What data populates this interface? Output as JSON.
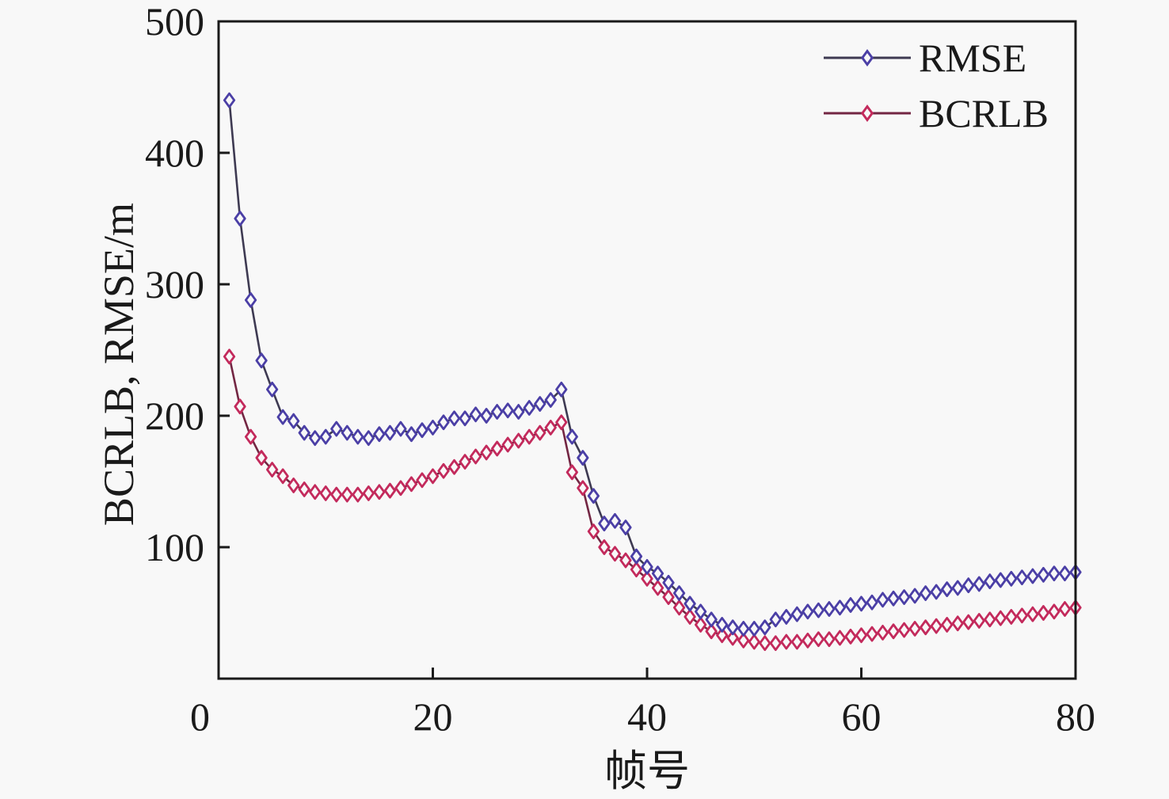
{
  "figure": {
    "background": "#f8f8f8",
    "axis_color": "#1a1a1a",
    "text_color": "#1a1a1a"
  },
  "chart_data": {
    "type": "line",
    "title": "",
    "xlabel": "帧号",
    "ylabel": "BCRLB, RMSE/m",
    "xlim": [
      0,
      80
    ],
    "ylim": [
      0,
      500
    ],
    "xticks": [
      0,
      20,
      40,
      60,
      80
    ],
    "yticks": [
      100,
      200,
      300,
      400,
      500
    ],
    "grid": false,
    "legend_position": "top-right",
    "x": [
      1,
      2,
      3,
      4,
      5,
      6,
      7,
      8,
      9,
      10,
      11,
      12,
      13,
      14,
      15,
      16,
      17,
      18,
      19,
      20,
      21,
      22,
      23,
      24,
      25,
      26,
      27,
      28,
      29,
      30,
      31,
      32,
      33,
      34,
      35,
      36,
      37,
      38,
      39,
      40,
      41,
      42,
      43,
      44,
      45,
      46,
      47,
      48,
      49,
      50,
      51,
      52,
      53,
      54,
      55,
      56,
      57,
      58,
      59,
      60,
      61,
      62,
      63,
      64,
      65,
      66,
      67,
      68,
      69,
      70,
      71,
      72,
      73,
      74,
      75,
      76,
      77,
      78,
      79,
      80
    ],
    "series": [
      {
        "name": "RMSE",
        "marker": "diamond",
        "line_color": "#3e3a52",
        "marker_color": "#4b3fa6",
        "marker_fill": "#f8f8f8",
        "values": [
          440,
          350,
          288,
          242,
          220,
          199,
          196,
          187,
          183,
          184,
          190,
          187,
          184,
          183,
          186,
          187,
          190,
          186,
          189,
          191,
          195,
          198,
          198,
          201,
          200,
          203,
          204,
          203,
          206,
          209,
          212,
          220,
          184,
          168,
          139,
          118,
          120,
          115,
          93,
          85,
          80,
          73,
          65,
          57,
          51,
          45,
          41,
          39,
          38,
          38,
          39,
          45,
          47,
          49,
          51,
          52,
          53,
          54,
          56,
          57,
          58,
          60,
          61,
          62,
          63,
          65,
          66,
          68,
          69,
          71,
          72,
          74,
          75,
          76,
          77,
          78,
          79,
          80,
          80,
          81
        ]
      },
      {
        "name": "BCRLB",
        "marker": "diamond",
        "line_color": "#732643",
        "marker_color": "#c32a5c",
        "marker_fill": "#f8f8f8",
        "values": [
          245,
          207,
          184,
          168,
          159,
          154,
          147,
          144,
          142,
          141,
          140,
          140,
          140,
          141,
          142,
          143,
          145,
          148,
          151,
          154,
          158,
          161,
          165,
          169,
          172,
          175,
          178,
          181,
          184,
          187,
          191,
          195,
          157,
          145,
          112,
          100,
          95,
          90,
          83,
          76,
          69,
          62,
          54,
          47,
          41,
          36,
          33,
          31,
          29,
          28,
          27,
          27,
          28,
          28,
          29,
          30,
          30,
          31,
          32,
          33,
          34,
          35,
          36,
          37,
          38,
          39,
          40,
          41,
          42,
          43,
          44,
          45,
          46,
          47,
          48,
          49,
          50,
          51,
          53,
          54
        ]
      }
    ]
  }
}
